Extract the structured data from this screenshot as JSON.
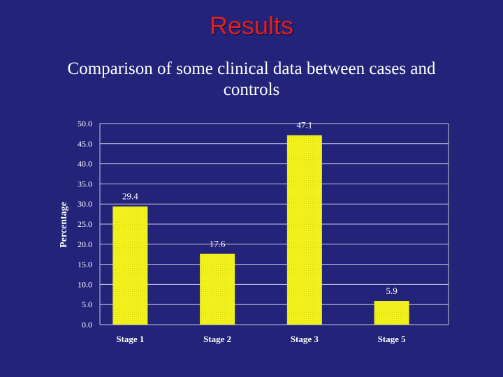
{
  "slide": {
    "title": "Results",
    "subtitle": "Comparison of some clinical data between cases and controls"
  },
  "colors": {
    "background": "#23237a",
    "title": "#e0201c",
    "bar": "#f2f21f",
    "grid": "#c8c8e0"
  },
  "chart_data": {
    "type": "bar",
    "categories": [
      "Stage 1",
      "Stage 2",
      "Stage 3",
      "Stage 5"
    ],
    "values": [
      29.4,
      17.6,
      47.1,
      5.9
    ],
    "value_labels": [
      "29.4",
      "17.6",
      "47.1",
      "5.9"
    ],
    "ylabel": "Percentage",
    "ylim": [
      0,
      50
    ],
    "yticks": [
      "0.0",
      "5.0",
      "10.0",
      "15.0",
      "20.0",
      "25.0",
      "30.0",
      "35.0",
      "40.0",
      "45.0",
      "50.0"
    ],
    "grid": true,
    "legend": "none"
  }
}
